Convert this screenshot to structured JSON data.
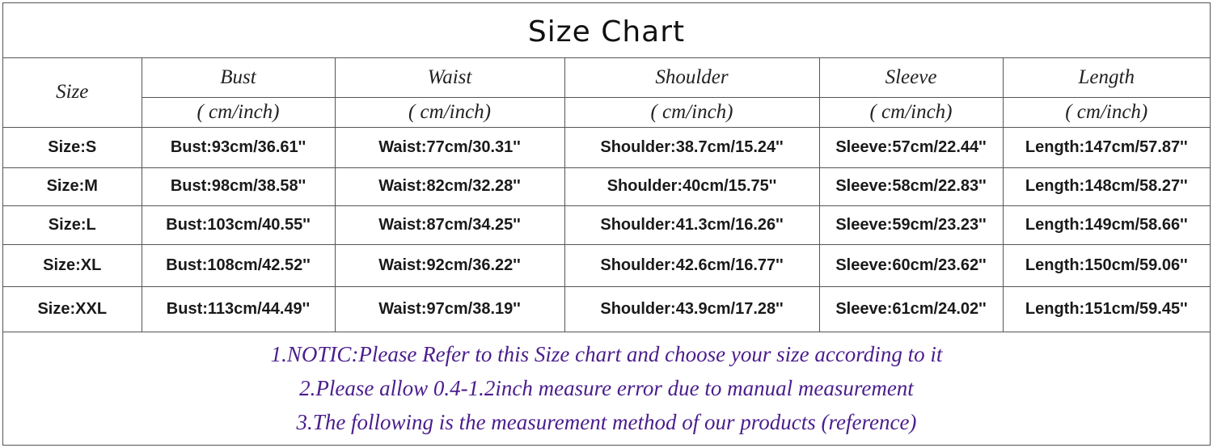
{
  "title": "Size Chart",
  "headers": {
    "size": "Size",
    "columns": [
      "Bust",
      "Waist",
      "Shoulder",
      "Sleeve",
      "Length"
    ],
    "unit": "( cm/inch)"
  },
  "rows": [
    {
      "size": "Size:S",
      "values": [
        "Bust:93cm/36.61''",
        "Waist:77cm/30.31''",
        "Shoulder:38.7cm/15.24''",
        "Sleeve:57cm/22.44''",
        "Length:147cm/57.87''"
      ]
    },
    {
      "size": "Size:M",
      "values": [
        "Bust:98cm/38.58''",
        "Waist:82cm/32.28''",
        "Shoulder:40cm/15.75''",
        "Sleeve:58cm/22.83''",
        "Length:148cm/58.27''"
      ]
    },
    {
      "size": "Size:L",
      "values": [
        "Bust:103cm/40.55''",
        "Waist:87cm/34.25''",
        "Shoulder:41.3cm/16.26''",
        "Sleeve:59cm/23.23''",
        "Length:149cm/58.66''"
      ]
    },
    {
      "size": "Size:XL",
      "values": [
        "Bust:108cm/42.52''",
        "Waist:92cm/36.22''",
        "Shoulder:42.6cm/16.77''",
        "Sleeve:60cm/23.62''",
        "Length:150cm/59.06''"
      ]
    },
    {
      "size": "Size:XXL",
      "values": [
        "Bust:113cm/44.49''",
        "Waist:97cm/38.19''",
        "Shoulder:43.9cm/17.28''",
        "Sleeve:61cm/24.02''",
        "Length:151cm/59.45''"
      ]
    }
  ],
  "notes": [
    "1.NOTIC:Please Refer to this Size chart and choose your size according to it",
    "2.Please allow 0.4-1.2inch measure error due to manual measurement",
    "3.The following is the measurement method of our products (reference)"
  ],
  "colors": {
    "notes": "#4a1d8c",
    "border": "#555555"
  }
}
